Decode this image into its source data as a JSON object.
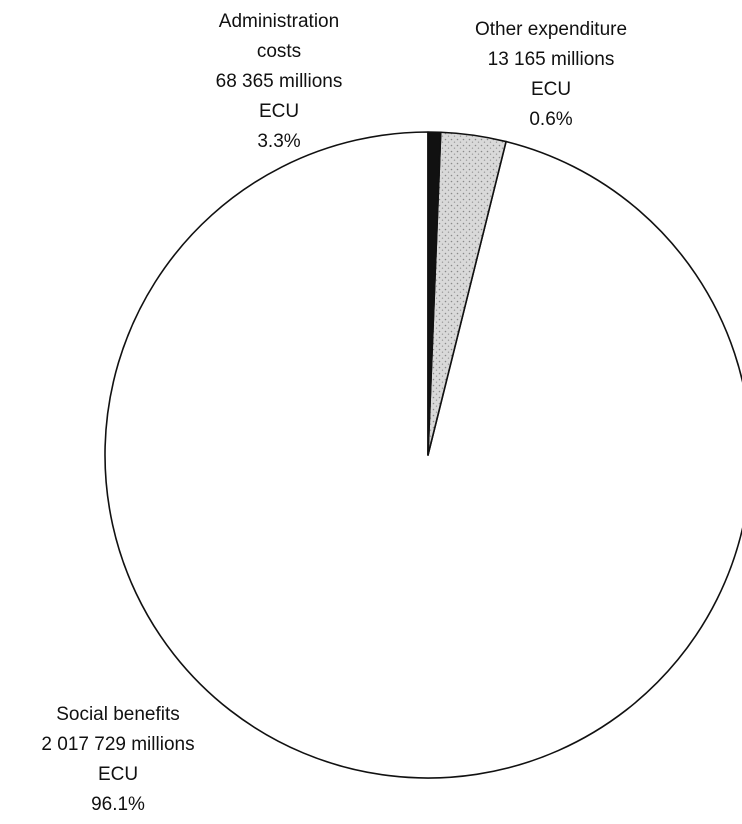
{
  "chart_data": {
    "type": "pie",
    "title": "",
    "start": "12 o'clock",
    "direction": "counter-clockwise",
    "legend": "none",
    "colors": [
      "#ffffff",
      "#d6d6d6",
      "#111111"
    ],
    "slices": [
      {
        "label": "Social benefits",
        "value": 2017729,
        "value_text": "2 017 729 millions",
        "unit": "ECU",
        "percent": 96.1,
        "percent_text": "96.1%",
        "color": "#ffffff"
      },
      {
        "label": "Administration costs",
        "value": 68365,
        "value_text": "68 365 millions",
        "unit": "ECU",
        "percent": 3.3,
        "percent_text": "3.3%",
        "color": "#d6d6d6"
      },
      {
        "label": "Other expenditure",
        "value": 13165,
        "value_text": "13 165 millions",
        "unit": "ECU",
        "percent": 0.6,
        "percent_text": "0.6%",
        "color": "#111111"
      }
    ]
  }
}
